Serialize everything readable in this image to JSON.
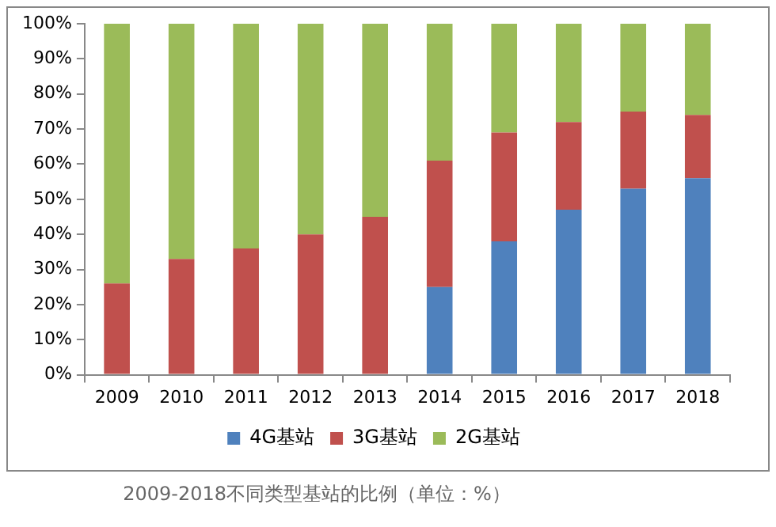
{
  "chart_data": {
    "type": "bar",
    "stacked": true,
    "categories": [
      "2009",
      "2010",
      "2011",
      "2012",
      "2013",
      "2014",
      "2015",
      "2016",
      "2017",
      "2018"
    ],
    "series": [
      {
        "name": "4G基站",
        "color": "#4f81bd",
        "values": [
          0,
          0,
          0,
          0,
          0,
          25,
          38,
          47,
          53,
          56
        ]
      },
      {
        "name": "3G基站",
        "color": "#c0504d",
        "values": [
          26,
          33,
          36,
          40,
          45,
          36,
          31,
          25,
          22,
          18
        ]
      },
      {
        "name": "2G基站",
        "color": "#9bbb59",
        "values": [
          74,
          67,
          64,
          60,
          55,
          39,
          31,
          28,
          25,
          26
        ]
      }
    ],
    "ylim": [
      0,
      100
    ],
    "yticks": [
      {
        "value": 0,
        "label": "0%"
      },
      {
        "value": 10,
        "label": "10%"
      },
      {
        "value": 20,
        "label": "20%"
      },
      {
        "value": 30,
        "label": "30%"
      },
      {
        "value": 40,
        "label": "40%"
      },
      {
        "value": 50,
        "label": "50%"
      },
      {
        "value": 60,
        "label": "60%"
      },
      {
        "value": 70,
        "label": "70%"
      },
      {
        "value": 80,
        "label": "80%"
      },
      {
        "value": 90,
        "label": "90%"
      },
      {
        "value": 100,
        "label": "100%"
      }
    ],
    "grid": false,
    "legend": "bottom",
    "annotations": [
      "2009-2018不同类型基站的比例（单位：%）"
    ]
  }
}
